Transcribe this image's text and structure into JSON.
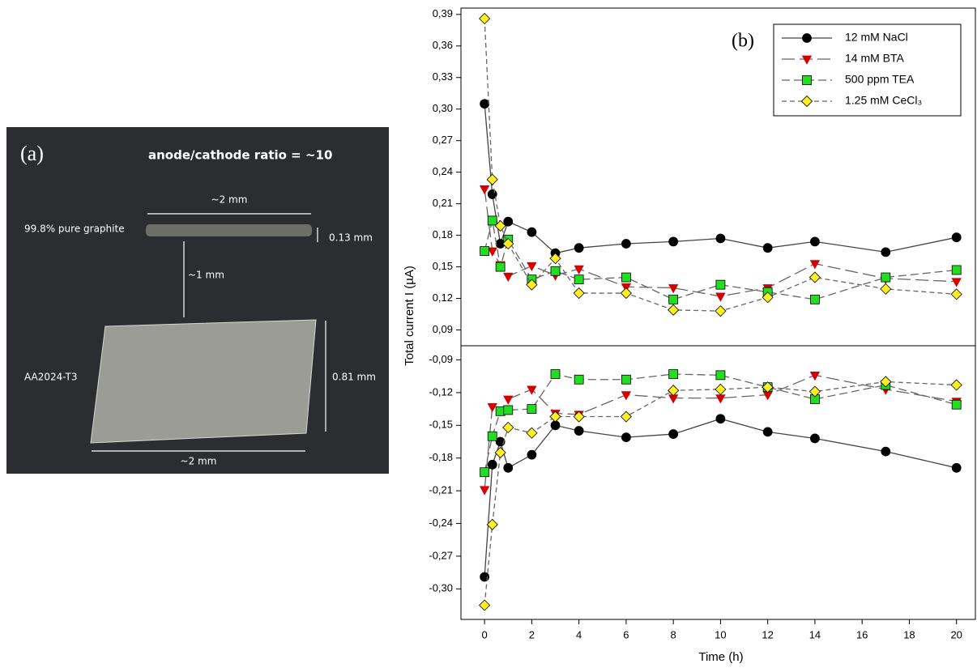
{
  "photo": {
    "label": "(a)",
    "title": "anode/cathode ratio = ~10",
    "annotations": [
      "~2 mm",
      "99.8% pure graphite",
      "0.13 mm",
      "~1 mm",
      "AA2024-T3",
      "0.81 mm",
      "~2 mm"
    ]
  },
  "chart_data": [
    {
      "type": "line",
      "annotation": "(b)",
      "ylabel": "Total current I (µA)",
      "legend": "upper right",
      "x": [
        0,
        0.33,
        0.67,
        1,
        2,
        3,
        4,
        6,
        8,
        10,
        12,
        14,
        17,
        20
      ],
      "xlim": [
        -1,
        20.8
      ],
      "ylim": [
        0.075,
        0.396
      ],
      "yticks": [
        {
          "value": 0.09,
          "label": "0,09"
        },
        {
          "value": 0.12,
          "label": "0,12"
        },
        {
          "value": 0.15,
          "label": "0,15"
        },
        {
          "value": 0.18,
          "label": "0,18"
        },
        {
          "value": 0.21,
          "label": "0,21"
        },
        {
          "value": 0.24,
          "label": "0,24"
        },
        {
          "value": 0.27,
          "label": "0,27"
        },
        {
          "value": 0.3,
          "label": "0,30"
        },
        {
          "value": 0.33,
          "label": "0,33"
        },
        {
          "value": 0.36,
          "label": "0,36"
        },
        {
          "value": 0.39,
          "label": "0,39"
        }
      ],
      "series": [
        {
          "name": "12 mM NaCl",
          "color": "#000000",
          "marker": "circle",
          "linestyle": "solid",
          "values": [
            0.305,
            0.219,
            0.172,
            0.193,
            0.183,
            0.163,
            0.168,
            0.172,
            0.174,
            0.177,
            0.168,
            0.174,
            0.164,
            0.178
          ]
        },
        {
          "name": "14 mM BTA",
          "color": "#d40000",
          "marker": "triangle-down",
          "linestyle": "long-dash",
          "values": [
            0.224,
            0.165,
            0.152,
            0.141,
            0.151,
            0.142,
            0.148,
            0.131,
            0.13,
            0.122,
            0.13,
            0.153,
            0.139,
            0.136
          ]
        },
        {
          "name": "500 ppm TEA",
          "color": "#22dd22",
          "marker": "square",
          "linestyle": "dash",
          "values": [
            0.165,
            0.194,
            0.15,
            0.176,
            0.138,
            0.146,
            0.138,
            0.14,
            0.119,
            0.133,
            0.126,
            0.119,
            0.14,
            0.147
          ]
        },
        {
          "name": "1.25 mM CeCl₃",
          "color": "#ffee22",
          "marker": "diamond",
          "linestyle": "short-dash",
          "values": [
            0.386,
            0.233,
            0.189,
            0.172,
            0.133,
            0.158,
            0.125,
            0.125,
            0.109,
            0.108,
            0.121,
            0.14,
            0.129,
            0.124
          ]
        }
      ]
    },
    {
      "type": "line",
      "xlabel": "Time (h)",
      "x": [
        0,
        0.33,
        0.67,
        1,
        2,
        3,
        4,
        6,
        8,
        10,
        12,
        14,
        17,
        20
      ],
      "xlim": [
        -1,
        20.8
      ],
      "xticks": [
        0,
        2,
        4,
        6,
        8,
        10,
        12,
        14,
        16,
        18,
        20
      ],
      "ylim": [
        -0.328,
        -0.077
      ],
      "yticks": [
        {
          "value": -0.3,
          "label": "-0,30"
        },
        {
          "value": -0.27,
          "label": "-0,27"
        },
        {
          "value": -0.24,
          "label": "-0,24"
        },
        {
          "value": -0.21,
          "label": "-0,21"
        },
        {
          "value": -0.18,
          "label": "-0,18"
        },
        {
          "value": -0.15,
          "label": "-0,15"
        },
        {
          "value": -0.12,
          "label": "-0,12"
        },
        {
          "value": -0.09,
          "label": "-0,09"
        }
      ],
      "series": [
        {
          "color": "#000000",
          "marker": "circle",
          "linestyle": "solid",
          "values": [
            -0.289,
            -0.186,
            -0.165,
            -0.189,
            -0.177,
            -0.15,
            -0.155,
            -0.161,
            -0.158,
            -0.144,
            -0.156,
            -0.162,
            -0.174,
            -0.189
          ]
        },
        {
          "color": "#d40000",
          "marker": "triangle-down",
          "linestyle": "long-dash",
          "values": [
            -0.209,
            -0.133,
            null,
            -0.126,
            -0.117,
            -0.139,
            -0.14,
            -0.122,
            -0.125,
            -0.125,
            -0.122,
            -0.104,
            -0.117,
            -0.128
          ]
        },
        {
          "color": "#22dd22",
          "marker": "square",
          "linestyle": "dash",
          "values": [
            -0.193,
            -0.16,
            -0.137,
            -0.136,
            -0.135,
            -0.103,
            -0.108,
            -0.108,
            -0.103,
            -0.104,
            -0.115,
            -0.126,
            -0.113,
            -0.131
          ]
        },
        {
          "color": "#ffee22",
          "marker": "diamond",
          "linestyle": "short-dash",
          "values": [
            -0.315,
            -0.241,
            -0.175,
            -0.152,
            -0.157,
            -0.142,
            -0.142,
            -0.142,
            -0.118,
            -0.117,
            -0.115,
            -0.119,
            -0.11,
            -0.113
          ]
        }
      ]
    }
  ]
}
